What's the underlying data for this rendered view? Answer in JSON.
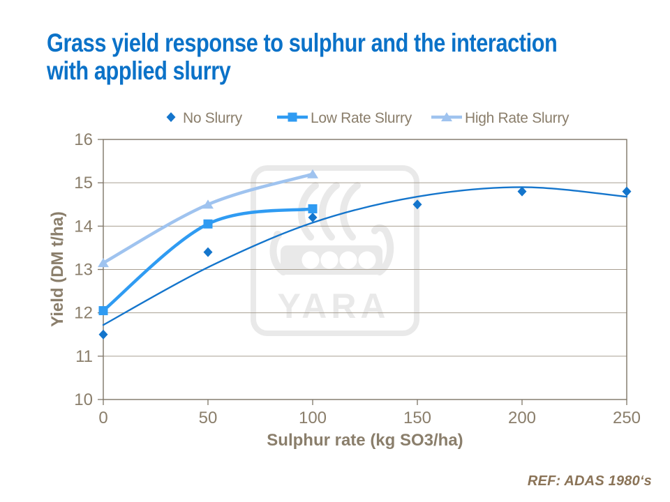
{
  "title": {
    "line1": "Grass yield response to sulphur and the interaction",
    "line2": "with applied slurry"
  },
  "footer": {
    "ref": "REF: ADAS 1980‘s"
  },
  "watermark": {
    "text": "YARA",
    "icon": "yara-viking-ship-logo"
  },
  "colors": {
    "title": "#0B72C8",
    "axis_text": "#8A7E6B",
    "axis_line": "#7E7567",
    "gridline": "#A89F91",
    "ref_text": "#8A7357",
    "watermark": "#E9E9E9",
    "background": "#FFFFFF"
  },
  "chart_data": {
    "type": "line",
    "title": "",
    "xlabel": "Sulphur rate (kg SO3/ha)",
    "ylabel": "Yield (DM t/ha)",
    "xlim": [
      0,
      250
    ],
    "ylim": [
      10,
      16
    ],
    "xticks": [
      0,
      50,
      100,
      150,
      200,
      250
    ],
    "yticks": [
      10,
      11,
      12,
      13,
      14,
      15,
      16
    ],
    "grid": true,
    "legend_position": "top",
    "series": [
      {
        "name": "No Slurry",
        "marker": "diamond",
        "color": "#1475CC",
        "line_style": "trendline",
        "line_width": 2.4,
        "x": [
          0,
          50,
          100,
          150,
          200,
          250
        ],
        "y": [
          11.5,
          13.4,
          14.2,
          14.5,
          14.8,
          14.8
        ],
        "trend_x": [
          0,
          50,
          100,
          150,
          200,
          250
        ],
        "trend_y": [
          11.72,
          13.05,
          14.08,
          14.68,
          14.9,
          14.68
        ]
      },
      {
        "name": "Low Rate Slurry",
        "marker": "square",
        "color": "#2F9BF2",
        "line_style": "smooth",
        "line_width": 4.5,
        "x": [
          0,
          50,
          100
        ],
        "y": [
          12.05,
          14.05,
          14.4
        ]
      },
      {
        "name": "High Rate Slurry",
        "marker": "triangle",
        "color": "#9FC3EF",
        "line_style": "smooth",
        "line_width": 4.5,
        "x": [
          0,
          50,
          100
        ],
        "y": [
          13.15,
          14.5,
          15.2
        ]
      }
    ]
  }
}
